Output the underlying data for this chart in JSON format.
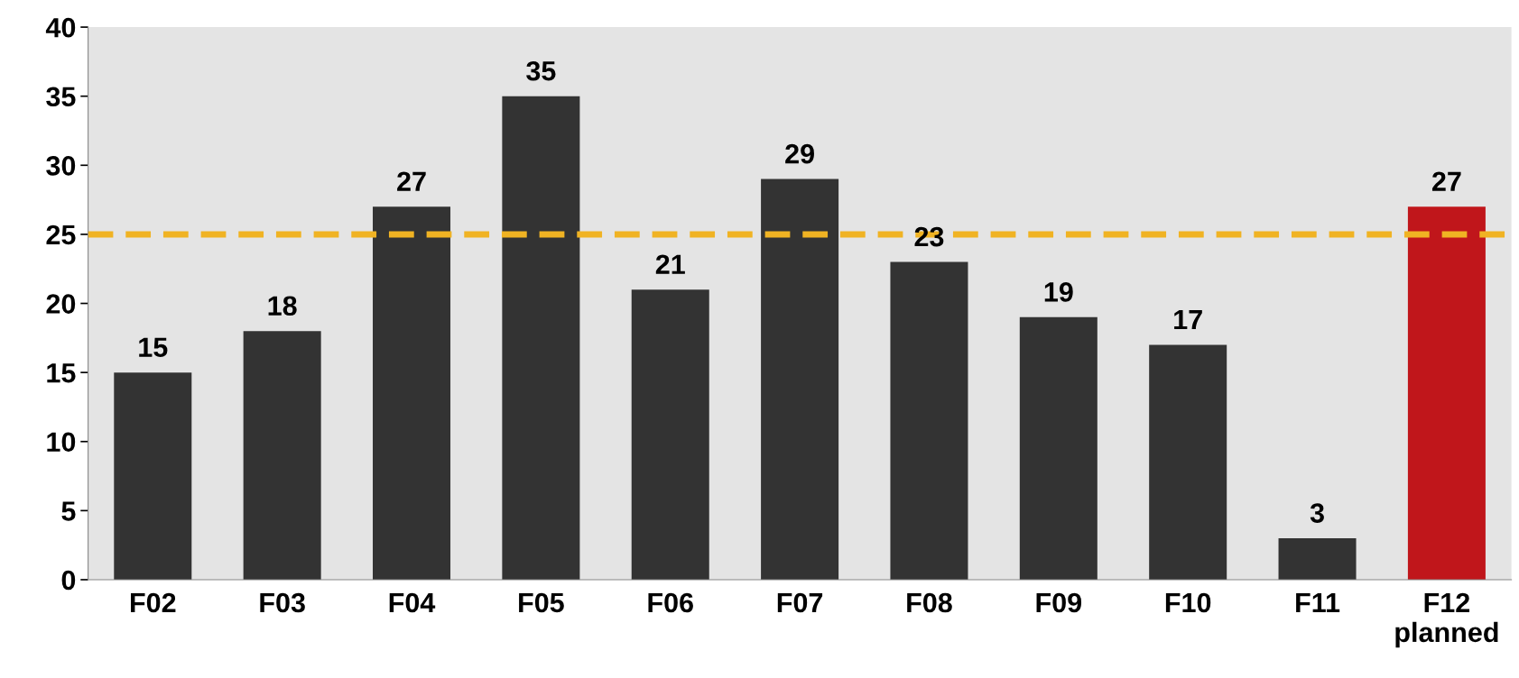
{
  "chart_data": {
    "type": "bar",
    "categories": [
      "F02",
      "F03",
      "F04",
      "F05",
      "F06",
      "F07",
      "F08",
      "F09",
      "F10",
      "F11",
      "F12\nplanned"
    ],
    "values": [
      15,
      18,
      27,
      35,
      21,
      29,
      23,
      19,
      17,
      3,
      27
    ],
    "colors": [
      "#333333",
      "#333333",
      "#333333",
      "#333333",
      "#333333",
      "#333333",
      "#333333",
      "#333333",
      "#333333",
      "#333333",
      "#c0161b"
    ],
    "ylim": [
      0,
      40
    ],
    "yticks": [
      0,
      5,
      10,
      15,
      20,
      25,
      30,
      35,
      40
    ],
    "data_labels": true,
    "grid": false,
    "ref_lines": [
      {
        "axis": "y",
        "value": 25,
        "label": null,
        "color": "#f0b323",
        "line_style": "dashed"
      }
    ]
  }
}
